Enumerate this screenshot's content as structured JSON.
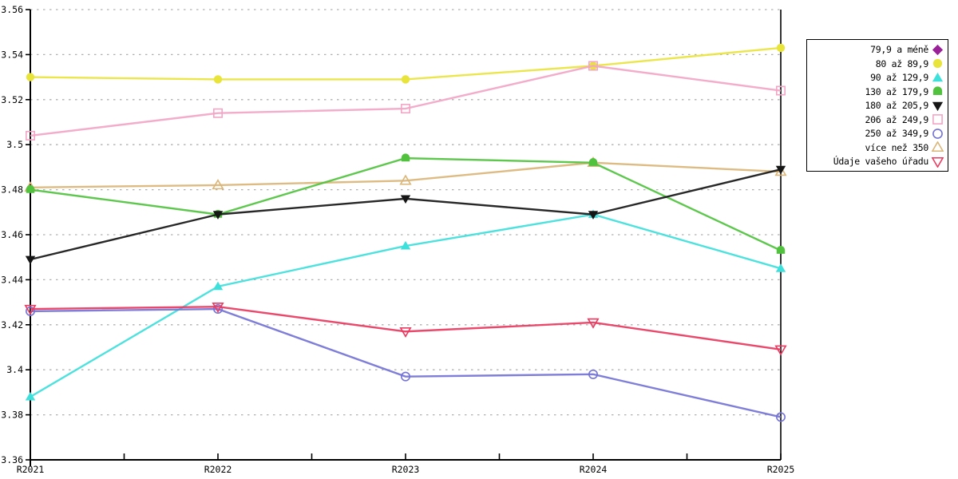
{
  "chart_data": {
    "type": "line",
    "title": "",
    "xlabel": "",
    "ylabel": "",
    "categories": [
      "R2021",
      "R2022",
      "R2023",
      "R2024",
      "R2025"
    ],
    "ylim": [
      3.36,
      3.56
    ],
    "y_tick_step": 0.02,
    "y_tick_labels": [
      "3.56",
      "3.54",
      "3.52",
      "3.5",
      "3.48",
      "3.46",
      "3.44",
      "3.42",
      "3.4",
      "3.38",
      "3.36"
    ],
    "grid": "horizontal-dashed",
    "grid_color": "#b0b0b0",
    "axis_color": "#000000",
    "legend_position": "right-outside",
    "series": [
      {
        "name": "79,9 a méně",
        "color": "#992299",
        "marker": "diamond-filled",
        "values": []
      },
      {
        "name": "80 až 89,9",
        "color": "#e9e43c",
        "marker": "circle-filled",
        "values": [
          3.53,
          3.529,
          3.529,
          3.535,
          3.543
        ]
      },
      {
        "name": "90 až 129,9",
        "color": "#3ee0db",
        "marker": "triangle-up-filled",
        "values": [
          3.388,
          3.437,
          3.455,
          3.469,
          3.445
        ]
      },
      {
        "name": "130 až 179,9",
        "color": "#50c23e",
        "marker": "dome-filled",
        "values": [
          3.48,
          3.469,
          3.494,
          3.492,
          3.453
        ]
      },
      {
        "name": "180 až 205,9",
        "color": "#161616",
        "marker": "triangle-down-filled",
        "values": [
          3.449,
          3.469,
          3.476,
          3.469,
          3.489
        ]
      },
      {
        "name": "206 až 249,9",
        "color": "#f2a5c4",
        "marker": "square-open",
        "values": [
          3.504,
          3.514,
          3.516,
          3.535,
          3.524
        ]
      },
      {
        "name": "250 až 349,9",
        "color": "#7473d6",
        "marker": "circle-open",
        "values": [
          3.426,
          3.427,
          3.397,
          3.398,
          3.379
        ]
      },
      {
        "name": "více než 350",
        "color": "#dab577",
        "marker": "triangle-up-open",
        "values": [
          3.481,
          3.482,
          3.484,
          3.492,
          3.488
        ]
      },
      {
        "name": "Údaje vašeho úřadu",
        "color": "#e93a60",
        "marker": "triangle-down-open",
        "values": [
          3.427,
          3.428,
          3.417,
          3.421,
          3.409
        ]
      }
    ],
    "render_order": [
      0,
      1,
      2,
      7,
      3,
      4,
      5,
      6,
      8
    ]
  }
}
